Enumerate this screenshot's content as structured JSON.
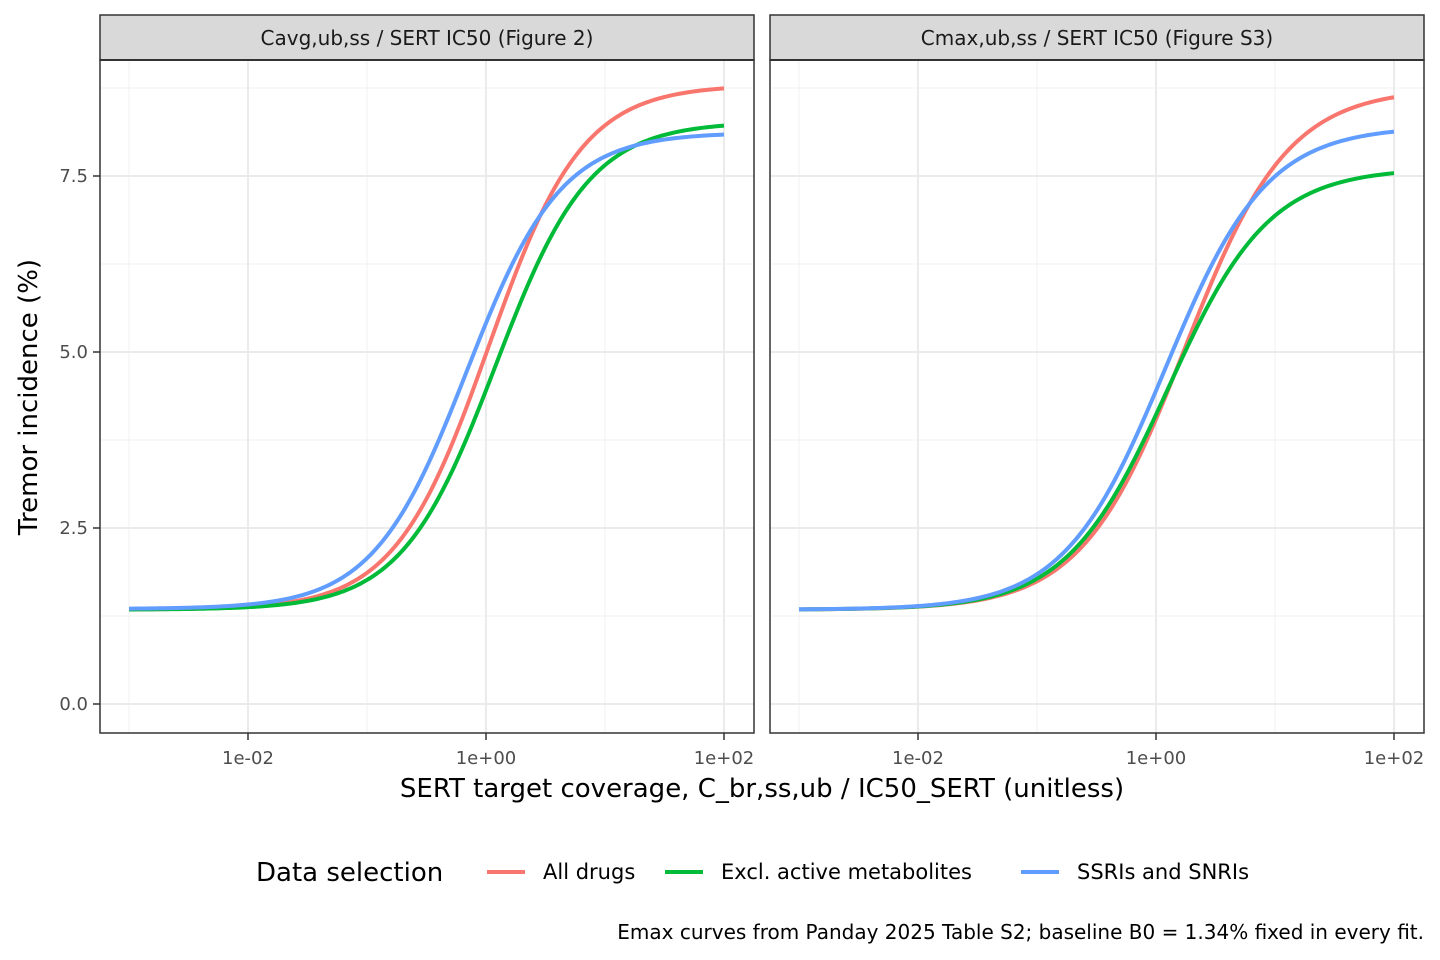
{
  "chart_data": {
    "type": "line",
    "xlabel": "SERT target coverage, C_br,ss,ub / IC50_SERT (unitless)",
    "ylabel": "Tremor incidence (%)",
    "x_scale": "log10",
    "xlim": [
      0.001,
      100
    ],
    "ylim": [
      0,
      9
    ],
    "x_ticks": [
      0.01,
      1,
      100
    ],
    "x_tick_labels": [
      "1e-02",
      "1e+00",
      "1e+02"
    ],
    "y_ticks": [
      0,
      2.5,
      5,
      7.5
    ],
    "y_tick_labels": [
      "0.0",
      "2.5",
      "5.0",
      "7.5"
    ],
    "grid": true,
    "legend": {
      "title": "Data selection",
      "position": "bottom",
      "entries": [
        {
          "label": "All drugs",
          "color": "#F8766D"
        },
        {
          "label": "Excl. active metabolites",
          "color": "#00BA38"
        },
        {
          "label": "SSRIs and SNRIs",
          "color": "#619CFF"
        }
      ]
    },
    "caption": "Emax curves from Panday 2025 Table S2; baseline B0 = 1.34% fixed in every fit.",
    "panels": [
      {
        "title": "Cavg,ub,ss / SERT IC50 (Figure 2)",
        "series": [
          {
            "name": "All drugs",
            "color": "#F8766D",
            "x": [
              0.001,
              0.01,
              0.1,
              0.3,
              1,
              3,
              10,
              100
            ],
            "y": [
              1.34,
              1.39,
              1.85,
              2.85,
              4.9,
              7.0,
              8.2,
              8.72
            ]
          },
          {
            "name": "Excl. active metabolites",
            "color": "#00BA38",
            "x": [
              0.001,
              0.01,
              0.1,
              0.3,
              1,
              3,
              10,
              100
            ],
            "y": [
              1.34,
              1.38,
              1.8,
              2.6,
              4.4,
              6.4,
              7.7,
              8.2
            ]
          },
          {
            "name": "SSRIs and SNRIs",
            "color": "#619CFF",
            "x": [
              0.001,
              0.01,
              0.1,
              0.3,
              1,
              3,
              10,
              100
            ],
            "y": [
              1.35,
              1.43,
              2.1,
              3.3,
              5.4,
              7.0,
              7.8,
              8.05
            ]
          }
        ]
      },
      {
        "title": "Cmax,ub,ss / SERT IC50 (Figure S3)",
        "series": [
          {
            "name": "All drugs",
            "color": "#F8766D",
            "x": [
              0.001,
              0.01,
              0.1,
              0.3,
              1,
              3,
              10,
              100
            ],
            "y": [
              1.34,
              1.37,
              1.72,
              2.5,
              4.0,
              6.0,
              7.7,
              8.6
            ]
          },
          {
            "name": "Excl. active metabolites",
            "color": "#00BA38",
            "x": [
              0.001,
              0.01,
              0.1,
              0.3,
              1,
              3,
              10,
              100
            ],
            "y": [
              1.34,
              1.38,
              1.75,
              2.55,
              4.1,
              5.8,
              6.9,
              7.55
            ]
          },
          {
            "name": "SSRIs and SNRIs",
            "color": "#619CFF",
            "x": [
              0.001,
              0.01,
              0.1,
              0.3,
              1,
              3,
              10,
              100
            ],
            "y": [
              1.34,
              1.38,
              1.8,
              2.75,
              4.4,
              6.3,
              7.5,
              8.07
            ]
          }
        ]
      }
    ]
  }
}
